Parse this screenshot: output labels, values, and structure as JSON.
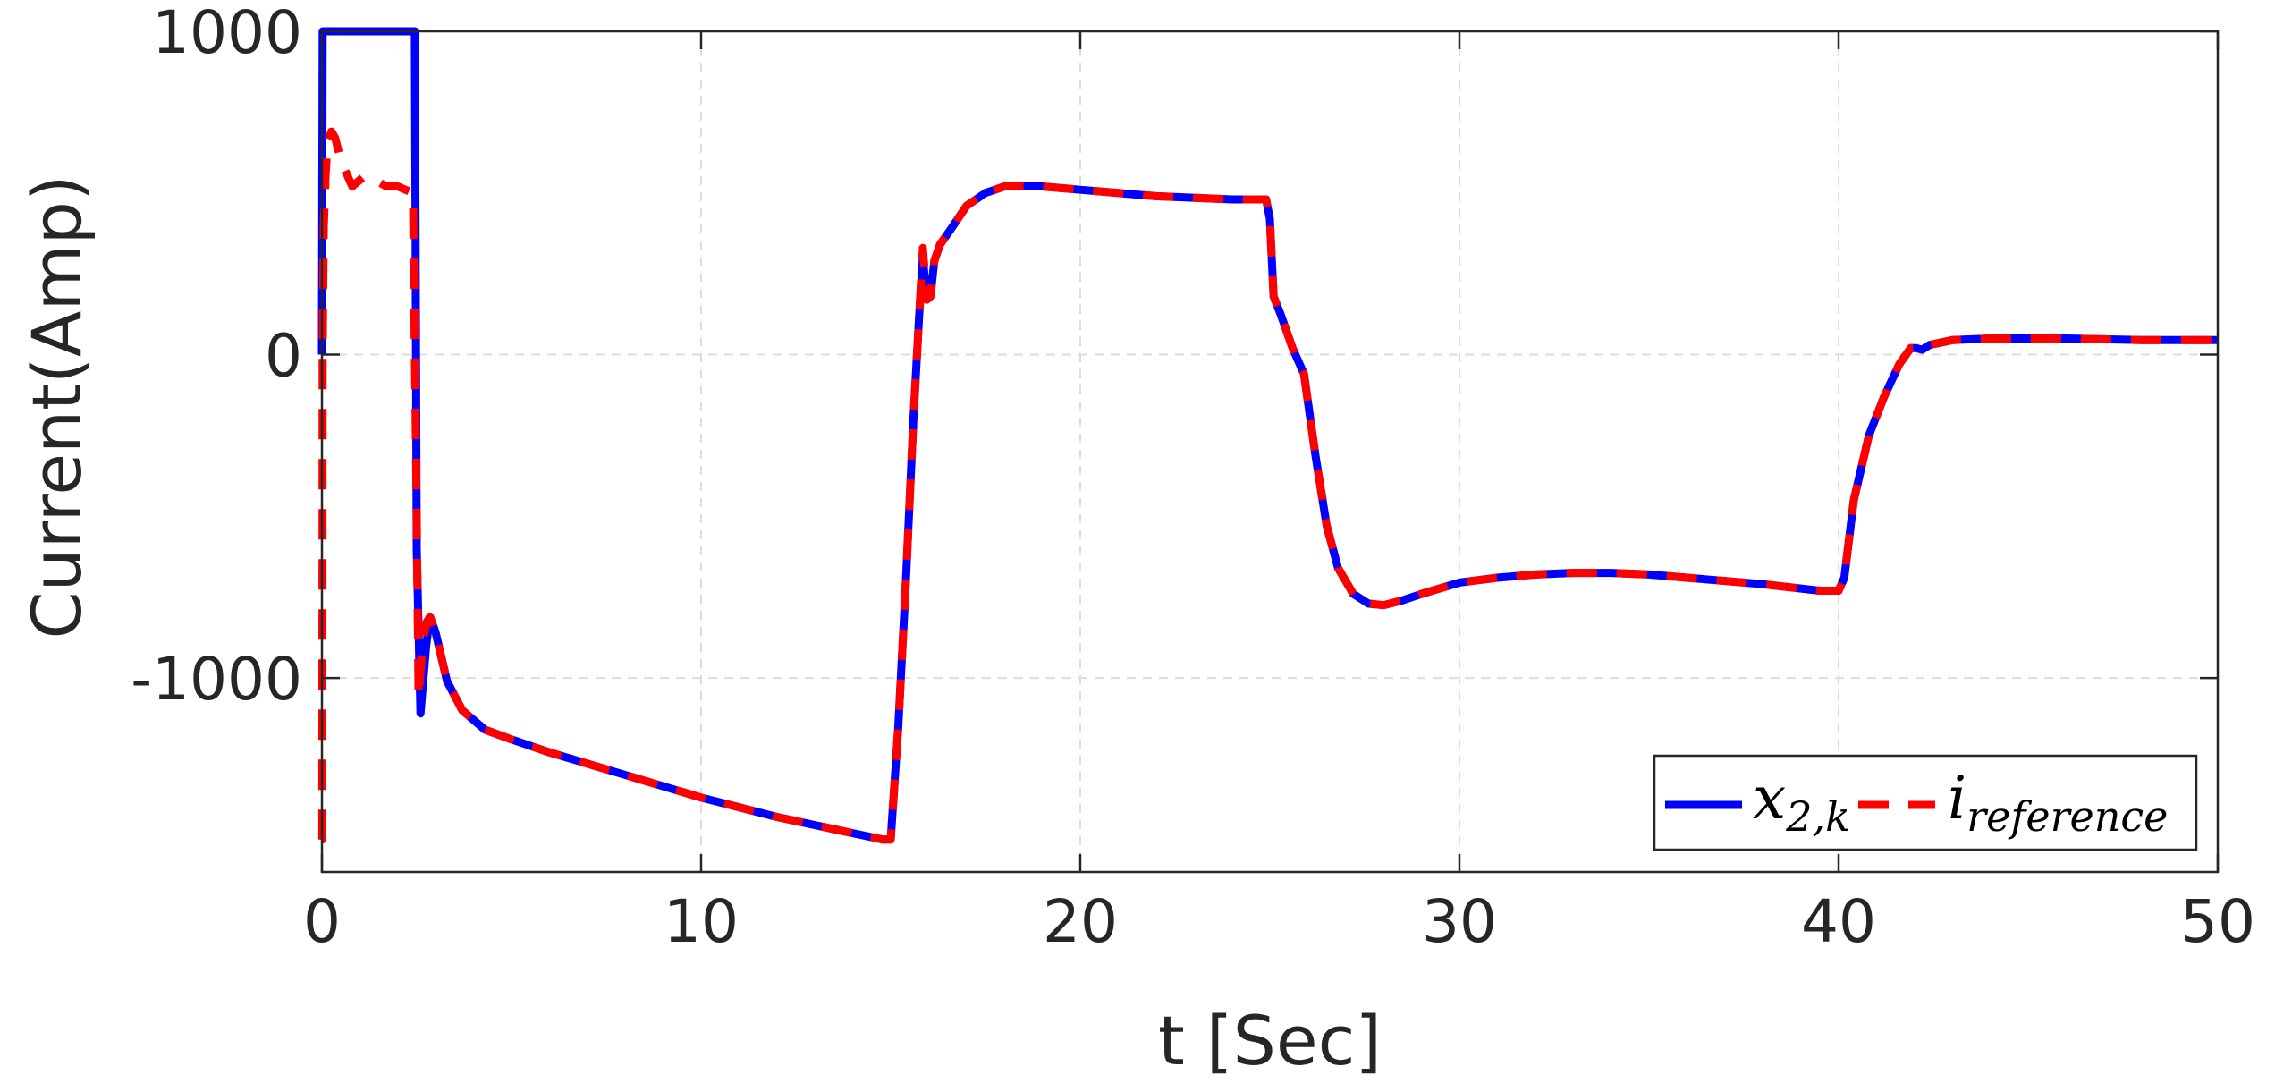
{
  "chart_data": {
    "type": "line",
    "title": "",
    "xlabel": "t [Sec]",
    "ylabel": "Current(Amp)",
    "xlim": [
      0,
      50
    ],
    "ylim": [
      -1600,
      1000
    ],
    "xticks": [
      0,
      10,
      20,
      30,
      40,
      50
    ],
    "xtick_labels": [
      "0",
      "10",
      "20",
      "30",
      "40",
      "50"
    ],
    "yticks": [
      1000,
      0,
      -1000
    ],
    "ytick_labels": [
      "1000",
      "0",
      "-1000"
    ],
    "grid": true,
    "legend_position": "bottom-right",
    "series": [
      {
        "name": "x",
        "name_subscript": "2,k",
        "color": "#0000ff",
        "style": "solid",
        "x": [
          0,
          0.02,
          2.45,
          2.5,
          2.6,
          2.75,
          2.85,
          3.0,
          3.3,
          3.7,
          4.3,
          5.0,
          6.0,
          8.0,
          10.0,
          12.0,
          14.0,
          14.8,
          15.0,
          15.2,
          15.4,
          15.6,
          15.75,
          15.85,
          15.95,
          16.05,
          16.15,
          16.3,
          16.6,
          17.0,
          17.5,
          18.0,
          19.0,
          20.0,
          22.0,
          24.0,
          24.9,
          25.0,
          25.1,
          25.3,
          25.6,
          25.9,
          26.2,
          26.5,
          26.8,
          27.2,
          27.6,
          28.0,
          28.5,
          29.0,
          30.0,
          31.0,
          32.0,
          33.0,
          34.0,
          35.0,
          36.0,
          38.0,
          39.5,
          39.9,
          40.0,
          40.15,
          40.4,
          40.8,
          41.2,
          41.6,
          41.9,
          42.05,
          42.2,
          42.4,
          43.0,
          44.0,
          46.0,
          48.0,
          50.0
        ],
        "y": [
          0,
          1000,
          1000,
          -600,
          -1110,
          -900,
          -810,
          -860,
          -1010,
          -1100,
          -1160,
          -1190,
          -1230,
          -1300,
          -1370,
          -1430,
          -1480,
          -1500,
          -1500,
          -1150,
          -700,
          -200,
          120,
          300,
          170,
          180,
          290,
          340,
          390,
          460,
          500,
          520,
          520,
          510,
          490,
          480,
          480,
          420,
          180,
          120,
          20,
          -60,
          -310,
          -530,
          -660,
          -740,
          -770,
          -775,
          -760,
          -740,
          -705,
          -690,
          -680,
          -675,
          -675,
          -680,
          -690,
          -710,
          -730,
          -730,
          -730,
          -690,
          -450,
          -250,
          -130,
          -30,
          20,
          20,
          15,
          30,
          45,
          50,
          50,
          45,
          45
        ]
      },
      {
        "name": "i",
        "name_subscript": "reference",
        "color": "#ff0000",
        "style": "dashed",
        "x": [
          0,
          0.01,
          0.02,
          0.05,
          0.1,
          0.15,
          0.25,
          0.35,
          0.5,
          0.8,
          1.1,
          1.4,
          1.7,
          2.0,
          2.4,
          2.48,
          2.55,
          2.65,
          2.75,
          2.85,
          3.0,
          3.3,
          3.7,
          4.3,
          5.0,
          6.0,
          8.0,
          10.0,
          12.0,
          14.0,
          14.8,
          15.0,
          15.2,
          15.4,
          15.6,
          15.75,
          15.85,
          15.95,
          16.05,
          16.15,
          16.3,
          16.6,
          17.0,
          17.5,
          18.0,
          19.0,
          20.0,
          22.0,
          24.0,
          24.9,
          25.0,
          25.1,
          25.3,
          25.6,
          25.9,
          26.2,
          26.5,
          26.8,
          27.2,
          27.6,
          28.0,
          28.5,
          29.0,
          30.0,
          31.0,
          32.0,
          33.0,
          34.0,
          35.0,
          36.0,
          38.0,
          39.5,
          39.9,
          40.0,
          40.15,
          40.4,
          40.8,
          41.2,
          41.6,
          41.9,
          42.05,
          42.2,
          42.4,
          43.0,
          44.0,
          46.0,
          48.0,
          50.0
        ],
        "y": [
          -1500,
          -1500,
          0,
          400,
          560,
          660,
          690,
          670,
          600,
          520,
          550,
          540,
          520,
          520,
          500,
          -300,
          -1060,
          -900,
          -830,
          -810,
          -860,
          -1010,
          -1100,
          -1160,
          -1190,
          -1230,
          -1300,
          -1370,
          -1430,
          -1480,
          -1500,
          -1500,
          -1150,
          -700,
          -200,
          120,
          330,
          170,
          180,
          290,
          340,
          390,
          460,
          500,
          520,
          520,
          510,
          490,
          480,
          480,
          420,
          180,
          120,
          20,
          -60,
          -310,
          -530,
          -660,
          -740,
          -770,
          -775,
          -760,
          -740,
          -705,
          -690,
          -680,
          -675,
          -675,
          -680,
          -690,
          -710,
          -730,
          -730,
          -730,
          -690,
          -450,
          -250,
          -130,
          -30,
          20,
          20,
          15,
          30,
          45,
          50,
          50,
          45,
          45
        ]
      }
    ]
  }
}
